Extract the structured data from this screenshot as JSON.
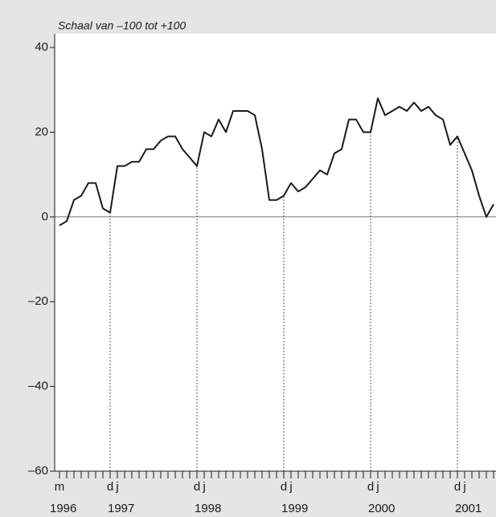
{
  "chart_data": {
    "type": "line",
    "subtitle": "Schaal van –100 tot +100",
    "categories": [
      "m",
      null,
      null,
      null,
      null,
      null,
      null,
      "d",
      "j",
      null,
      null,
      null,
      null,
      null,
      null,
      null,
      null,
      null,
      null,
      "d",
      "j",
      null,
      null,
      null,
      null,
      null,
      null,
      null,
      null,
      null,
      null,
      "d",
      "j",
      null,
      null,
      null,
      null,
      null,
      null,
      null,
      null,
      null,
      null,
      "d",
      "j",
      null,
      null,
      null,
      null,
      null,
      null,
      null,
      null,
      null,
      null,
      "d",
      "j",
      null,
      null,
      null,
      null
    ],
    "x_year_labels": [
      {
        "value": 0,
        "label": "1996"
      },
      {
        "value": 8,
        "label": "1997"
      },
      {
        "value": 20,
        "label": "1998"
      },
      {
        "value": 32,
        "label": "1999"
      },
      {
        "value": 44,
        "label": "2000"
      },
      {
        "value": 56,
        "label": "2001"
      }
    ],
    "series": [
      {
        "color": "#1a1a1a",
        "values": [
          -2,
          -1,
          4,
          5,
          8,
          8,
          2,
          1,
          12,
          12,
          13,
          13,
          16,
          16,
          18,
          19,
          19,
          16,
          14,
          12,
          20,
          19,
          23,
          20,
          25,
          25,
          25,
          24,
          16,
          4,
          4,
          5,
          8,
          6,
          7,
          9,
          11,
          10,
          15,
          16,
          23,
          23,
          20,
          20,
          28,
          24,
          25,
          26,
          25,
          27,
          25,
          26,
          24,
          23,
          17,
          19,
          15,
          11,
          5,
          0,
          3
        ]
      }
    ],
    "ylim": [
      -60,
      40
    ],
    "yticks": [
      {
        "value": -60,
        "label": "–60"
      },
      {
        "value": -40,
        "label": "–40"
      },
      {
        "value": -20,
        "label": "–20"
      },
      0,
      20,
      40
    ]
  }
}
